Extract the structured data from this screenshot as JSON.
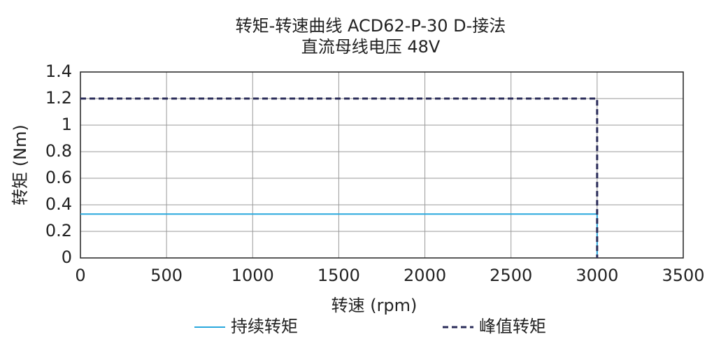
{
  "chart_data": {
    "type": "line",
    "title": "转矩-转速曲线 ACD62-P-30 D-接法",
    "subtitle": "直流母线电压 48V",
    "x_label": "转速 (rpm)",
    "y_label": "转矩 (Nm)",
    "x": [
      0,
      3000,
      3000
    ],
    "series": [
      {
        "name": "持续转矩",
        "color": "#29a8dd",
        "dash": false,
        "values": [
          0.33,
          0.33,
          0
        ]
      },
      {
        "name": "峰值转矩",
        "color": "#2b2d5a",
        "dash": true,
        "values": [
          1.2,
          1.2,
          0
        ]
      }
    ],
    "xlim": [
      0,
      3500
    ],
    "xticks": [
      0,
      500,
      1000,
      1500,
      2000,
      2500,
      3000,
      3500
    ],
    "ylim": [
      0,
      1.4
    ],
    "yticks": [
      0,
      0.2,
      0.4,
      0.6,
      0.8,
      1,
      1.2,
      1.4
    ],
    "grid": true
  }
}
